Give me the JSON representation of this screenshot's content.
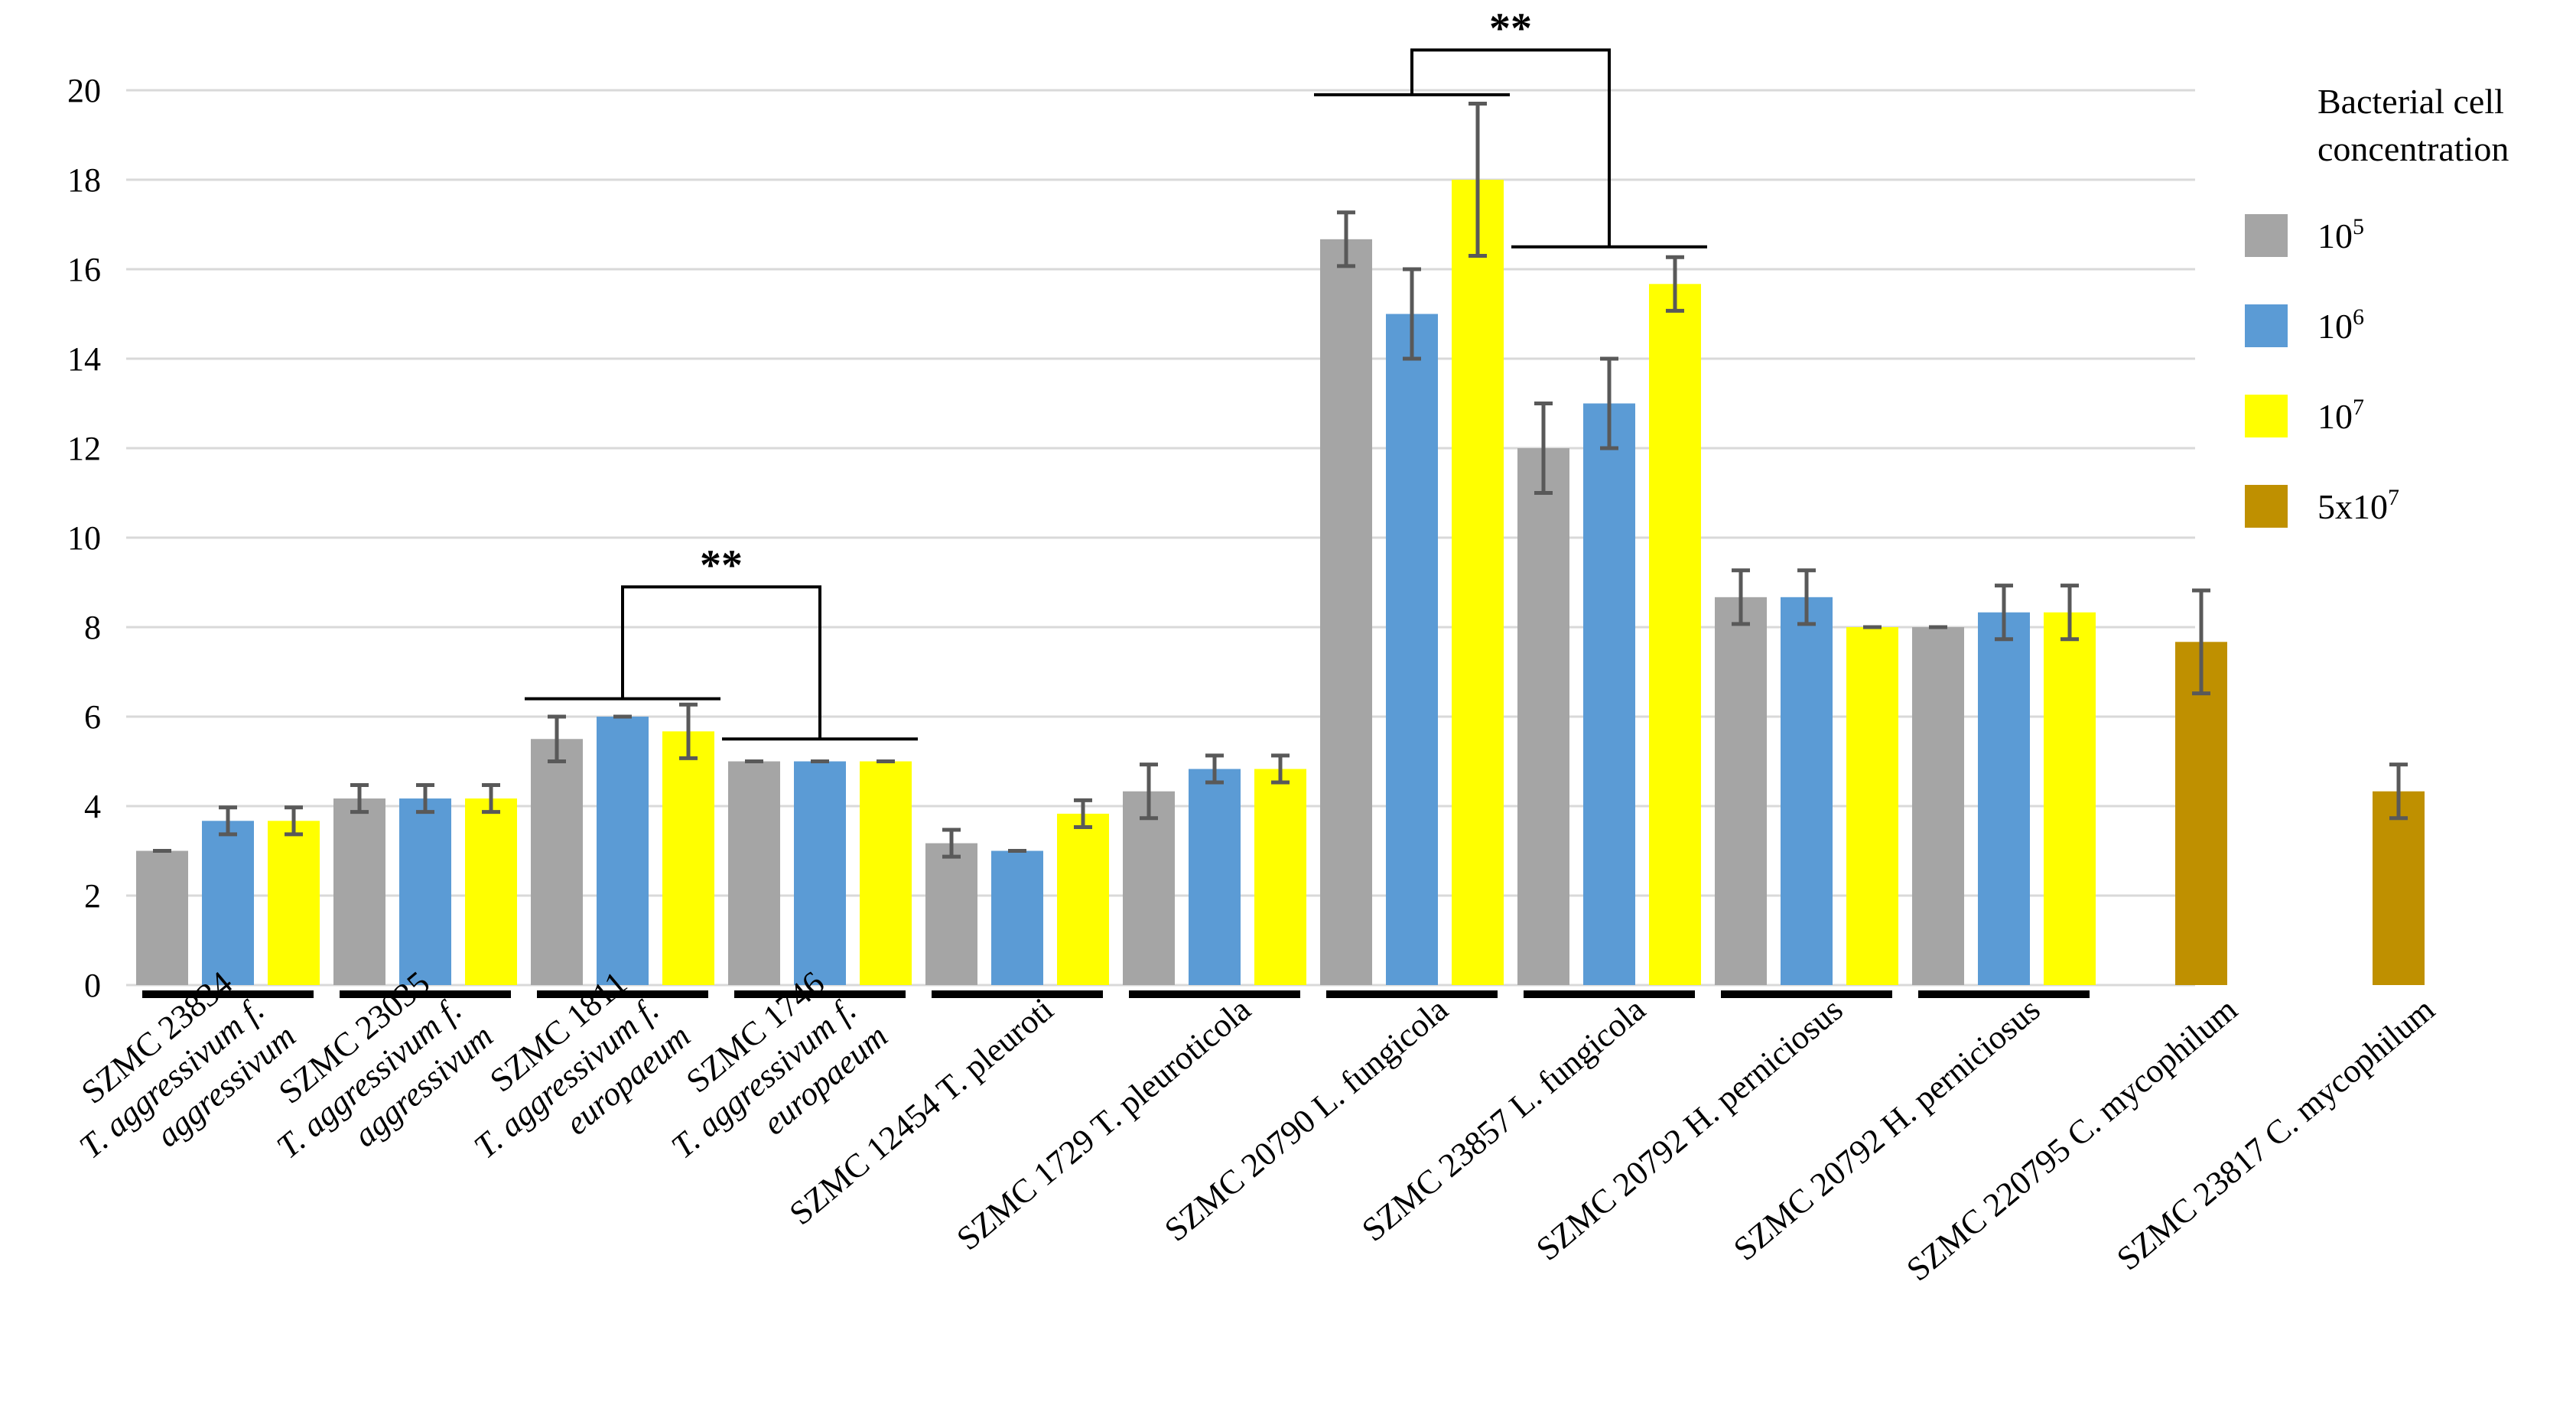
{
  "chart_data": {
    "type": "bar",
    "ylim": [
      0,
      20
    ],
    "yticks": [
      "0",
      "2",
      "4",
      "6",
      "8",
      "10",
      "12",
      "14",
      "16",
      "18",
      "20"
    ],
    "grid": true,
    "legend": {
      "title_line1": "Bacterial cell",
      "title_line2": "concentration",
      "placement": "right",
      "entries": [
        {
          "key": "c5",
          "base": "10",
          "exp": "5",
          "color": "#a5a5a5"
        },
        {
          "key": "c6",
          "base": "10",
          "exp": "6",
          "color": "#5b9bd5"
        },
        {
          "key": "c7",
          "base": "10",
          "exp": "7",
          "color": "#ffff00"
        },
        {
          "key": "c57",
          "base": "5x10",
          "exp": "7",
          "color": "#bf9000"
        }
      ]
    },
    "categories": [
      {
        "lines": [
          "SZMC 23834",
          "T. aggressivum f.",
          "aggressivum"
        ],
        "italic": [
          false,
          true,
          true
        ],
        "bars": [
          {
            "s": "c5",
            "v": 3.0,
            "e": 0.0
          },
          {
            "s": "c6",
            "v": 3.67,
            "e": 0.3
          },
          {
            "s": "c7",
            "v": 3.67,
            "e": 0.3
          }
        ]
      },
      {
        "lines": [
          "SZMC 23035",
          "T. aggressivum f.",
          "aggressivum"
        ],
        "italic": [
          false,
          true,
          true
        ],
        "bars": [
          {
            "s": "c5",
            "v": 4.17,
            "e": 0.3
          },
          {
            "s": "c6",
            "v": 4.17,
            "e": 0.3
          },
          {
            "s": "c7",
            "v": 4.17,
            "e": 0.3
          }
        ]
      },
      {
        "lines": [
          "SZMC 1811",
          "T. aggressivum f.",
          "europaeum"
        ],
        "italic": [
          false,
          true,
          true
        ],
        "bars": [
          {
            "s": "c5",
            "v": 5.5,
            "e": 0.5
          },
          {
            "s": "c6",
            "v": 6.0,
            "e": 0.0
          },
          {
            "s": "c7",
            "v": 5.67,
            "e": 0.6
          }
        ]
      },
      {
        "lines": [
          "SZMC 1746",
          "T. aggressivum f.",
          "europaeum"
        ],
        "italic": [
          false,
          true,
          true
        ],
        "bars": [
          {
            "s": "c5",
            "v": 5.0,
            "e": 0.0
          },
          {
            "s": "c6",
            "v": 5.0,
            "e": 0.0
          },
          {
            "s": "c7",
            "v": 5.0,
            "e": 0.0
          }
        ]
      },
      {
        "lines": [
          "SZMC 12454 T. pleuroti"
        ],
        "italic": [
          false
        ],
        "bars": [
          {
            "s": "c5",
            "v": 3.17,
            "e": 0.3
          },
          {
            "s": "c6",
            "v": 3.0,
            "e": 0.0
          },
          {
            "s": "c7",
            "v": 3.83,
            "e": 0.3
          }
        ]
      },
      {
        "lines": [
          "SZMC 1729 T. pleuroticola"
        ],
        "italic": [
          false
        ],
        "bars": [
          {
            "s": "c5",
            "v": 4.33,
            "e": 0.6
          },
          {
            "s": "c6",
            "v": 4.83,
            "e": 0.3
          },
          {
            "s": "c7",
            "v": 4.83,
            "e": 0.3
          }
        ]
      },
      {
        "lines": [
          "SZMC 20790 L. fungicola"
        ],
        "italic": [
          false
        ],
        "bars": [
          {
            "s": "c5",
            "v": 16.67,
            "e": 0.6
          },
          {
            "s": "c6",
            "v": 15.0,
            "e": 1.0
          },
          {
            "s": "c7",
            "v": 18.0,
            "e": 1.7
          }
        ]
      },
      {
        "lines": [
          "SZMC 23857 L. fungicola"
        ],
        "italic": [
          false
        ],
        "bars": [
          {
            "s": "c5",
            "v": 12.0,
            "e": 1.0
          },
          {
            "s": "c6",
            "v": 13.0,
            "e": 1.0
          },
          {
            "s": "c7",
            "v": 15.67,
            "e": 0.6
          }
        ]
      },
      {
        "lines": [
          "SZMC 20792 H. perniciosus"
        ],
        "italic": [
          false
        ],
        "bars": [
          {
            "s": "c5",
            "v": 8.67,
            "e": 0.6
          },
          {
            "s": "c6",
            "v": 8.67,
            "e": 0.6
          },
          {
            "s": "c7",
            "v": 8.0,
            "e": 0.0
          }
        ]
      },
      {
        "lines": [
          "SZMC 20792 H. perniciosus"
        ],
        "italic": [
          false
        ],
        "bars": [
          {
            "s": "c5",
            "v": 8.0,
            "e": 0.0
          },
          {
            "s": "c6",
            "v": 8.33,
            "e": 0.6
          },
          {
            "s": "c7",
            "v": 8.33,
            "e": 0.6
          }
        ]
      },
      {
        "lines": [
          "SZMC 220795 C. mycophilum"
        ],
        "italic": [
          false
        ],
        "bars": [
          {
            "s": "c57",
            "v": 7.67,
            "e": 1.15
          }
        ]
      },
      {
        "lines": [
          "SZMC 23817 C. mycophilum"
        ],
        "italic": [
          false
        ],
        "bars": [
          {
            "s": "c57",
            "v": 4.33,
            "e": 0.6
          }
        ]
      }
    ],
    "annotations": [
      {
        "label": "**",
        "left_group": 2,
        "right_group": 3,
        "left_level": 6.4,
        "right_level": 5.5,
        "top_level": 8.9
      },
      {
        "label": "**",
        "left_group": 6,
        "right_group": 7,
        "left_level": 19.9,
        "right_level": 16.5,
        "top_level": 20.9
      }
    ]
  }
}
